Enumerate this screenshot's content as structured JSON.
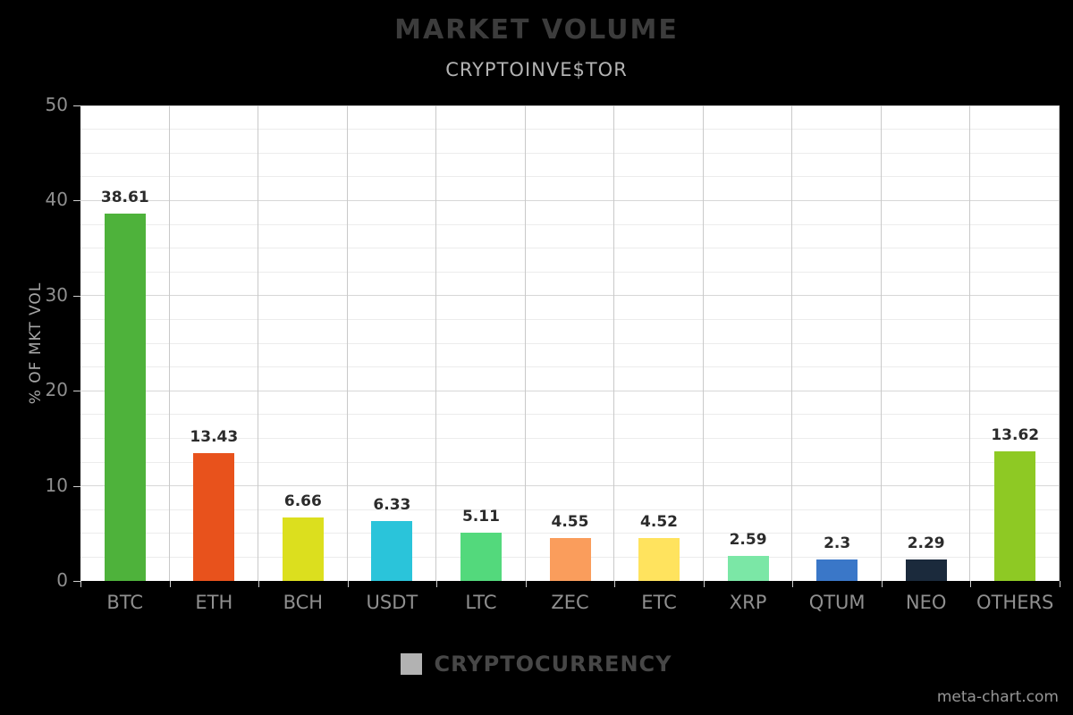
{
  "header": {
    "title": "MARKET VOLUME",
    "subtitle": "CRYPTOINVE$TOR"
  },
  "legend": {
    "label": "CRYPTOCURRENCY",
    "swatch_color": "#b2b2b2"
  },
  "watermark": "meta-chart.com",
  "chart_data": {
    "type": "bar",
    "title": "MARKET VOLUME",
    "subtitle": "CRYPTOINVE$TOR",
    "xlabel": "CRYPTOCURRENCY",
    "ylabel": "% OF MKT VOL",
    "ylim": [
      0,
      50
    ],
    "yticks": [
      0,
      10,
      20,
      30,
      40,
      50
    ],
    "grid": true,
    "legend_position": "bottom",
    "categories": [
      "BTC",
      "ETH",
      "BCH",
      "USDT",
      "LTC",
      "ZEC",
      "ETC",
      "XRP",
      "QTUM",
      "NEO",
      "OTHERS"
    ],
    "values": [
      38.61,
      13.43,
      6.66,
      6.33,
      5.11,
      4.55,
      4.52,
      2.59,
      2.3,
      2.29,
      13.62
    ],
    "value_labels": [
      "38.61",
      "13.43",
      "6.66",
      "6.33",
      "5.11",
      "4.55",
      "4.52",
      "2.59",
      "2.3",
      "2.29",
      "13.62"
    ],
    "bar_colors": [
      "#4eb23b",
      "#e8521c",
      "#dcdf1e",
      "#2ac4da",
      "#53d97c",
      "#fa9d5c",
      "#ffe35e",
      "#7be7a6",
      "#3a77c8",
      "#1b2a3c",
      "#8ec924"
    ],
    "background_color": "#000000",
    "plot_background_color": "#ffffff"
  }
}
